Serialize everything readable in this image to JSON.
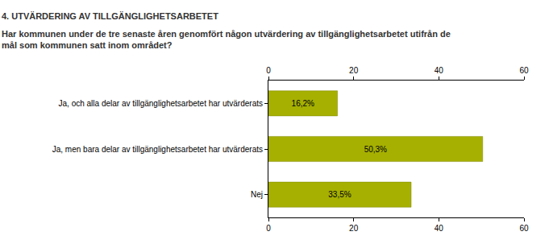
{
  "chart_data": {
    "type": "bar",
    "orientation": "horizontal",
    "title": "4. UTVÄRDERING AV TILLGÄNGLIGHETSARBETET",
    "subtitle": "Har kommunen under de tre senaste åren genomfört någon utvärdering av tillgänglighetsarbetet utifrån de mål som kommunen satt inom området?",
    "categories": [
      "Ja, och alla delar av tillgänglighetsarbetet har utvärderats",
      "Ja, men bara delar av tillgänglighetsarbetet har utvärderats",
      "Nej"
    ],
    "values": [
      16.2,
      50.3,
      33.5
    ],
    "value_labels": [
      "16,2%",
      "50,3%",
      "33,5%"
    ],
    "color": "#a6b000",
    "xlim": [
      0,
      60
    ],
    "xticks": [
      0,
      20,
      40,
      60
    ],
    "grid": false,
    "data_labels": true
  }
}
